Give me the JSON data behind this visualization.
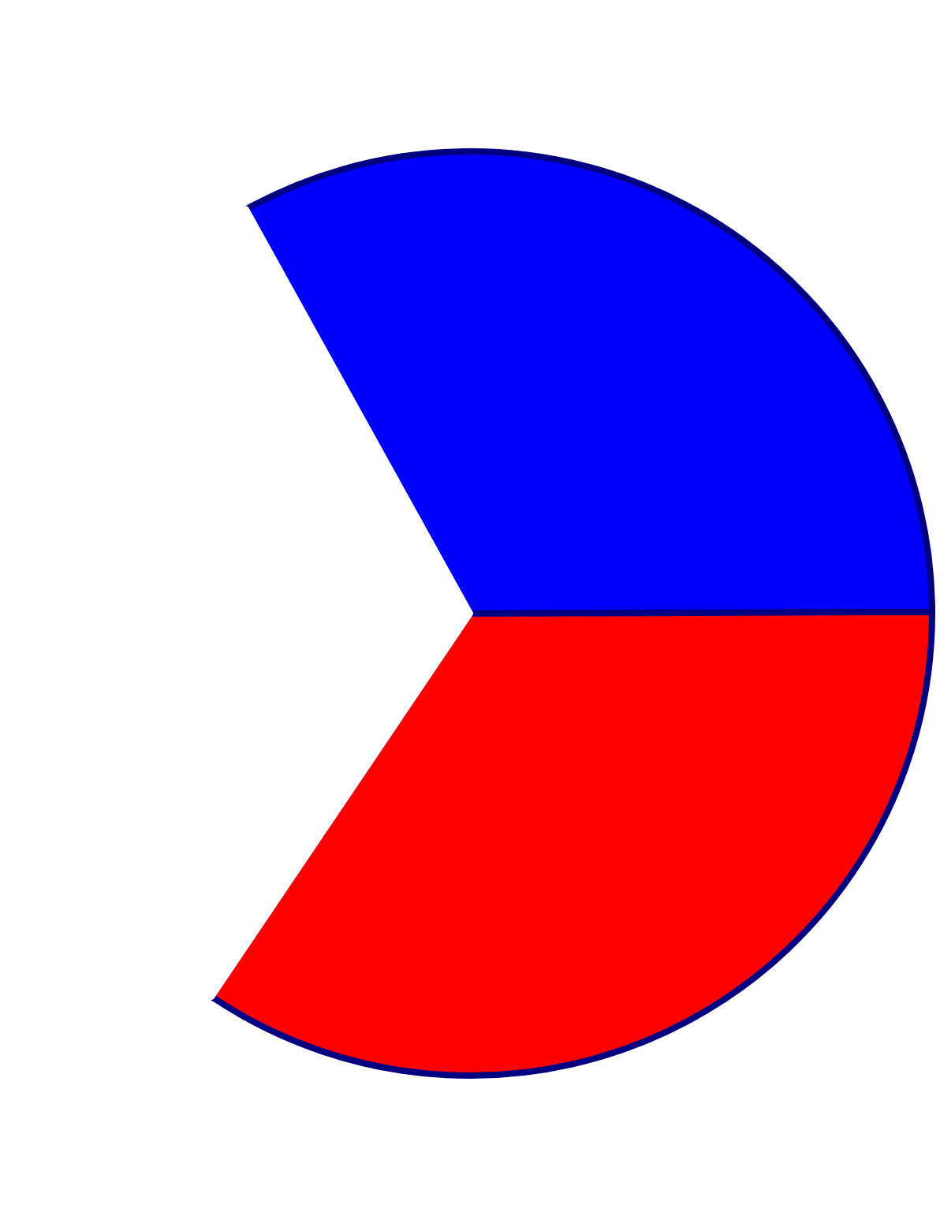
{
  "chart_data": {
    "type": "pie",
    "categories": [
      null,
      null,
      null
    ],
    "values": [
      33,
      34.5,
      32.5
    ],
    "colors": [
      "#0000ff",
      "#ff0000",
      "#ffffff"
    ]
  }
}
